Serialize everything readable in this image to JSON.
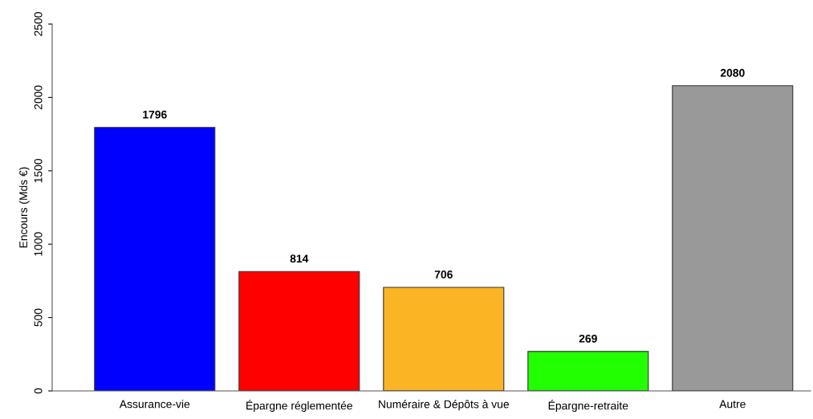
{
  "chart_data": {
    "type": "bar",
    "ylabel": "Encours (Mds €)",
    "categories": [
      "Assurance-vie",
      "Épargne réglementée",
      "Numéraire & Dépôts à vue",
      "Épargne-retraite",
      "Autre"
    ],
    "values": [
      1796,
      814,
      706,
      269,
      2080
    ],
    "colors": [
      "#0000ff",
      "#ff0000",
      "#fbb424",
      "#22ff00",
      "#999999"
    ],
    "ylim": [
      0,
      2500
    ],
    "yticks": [
      0,
      500,
      1000,
      1500,
      2000,
      2500
    ],
    "data_labels": true,
    "grid": false,
    "legend": false
  }
}
